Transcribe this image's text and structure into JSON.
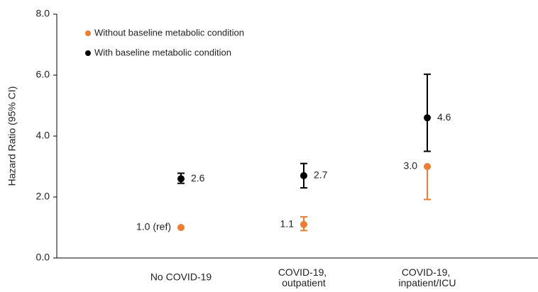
{
  "chart_data": {
    "type": "errorbar",
    "y_label": "Hazard Ratio (95% CI)",
    "categories": [
      "No COVID-19",
      "COVID-19, outpatient",
      "COVID-19, inpatient/ICU"
    ],
    "series": [
      {
        "name": "Without baseline metabolic condition",
        "color": "#ed7d31",
        "values": [
          1.0,
          1.1,
          3.0
        ],
        "value_labels": [
          "1.0 (ref)",
          "1.1",
          "3.0"
        ],
        "ci_lower": [
          null,
          0.9,
          1.92
        ],
        "ci_upper": [
          null,
          1.35,
          3.0
        ],
        "label_side": "left"
      },
      {
        "name": "With baseline metabolic condition",
        "color": "#000000",
        "values": [
          2.6,
          2.7,
          4.6
        ],
        "value_labels": [
          "2.6",
          "2.7",
          "4.6"
        ],
        "ci_lower": [
          2.45,
          2.3,
          3.5
        ],
        "ci_upper": [
          2.78,
          3.1,
          6.03
        ],
        "label_side": "right"
      }
    ],
    "ylim": [
      0,
      8
    ],
    "yticks": [
      {
        "value": 0,
        "label": "0.0"
      },
      {
        "value": 2,
        "label": "2.0"
      },
      {
        "value": 4,
        "label": "4.0"
      },
      {
        "value": 6,
        "label": "6.0"
      },
      {
        "value": 8,
        "label": "8.0"
      }
    ],
    "legend": "top-left"
  }
}
